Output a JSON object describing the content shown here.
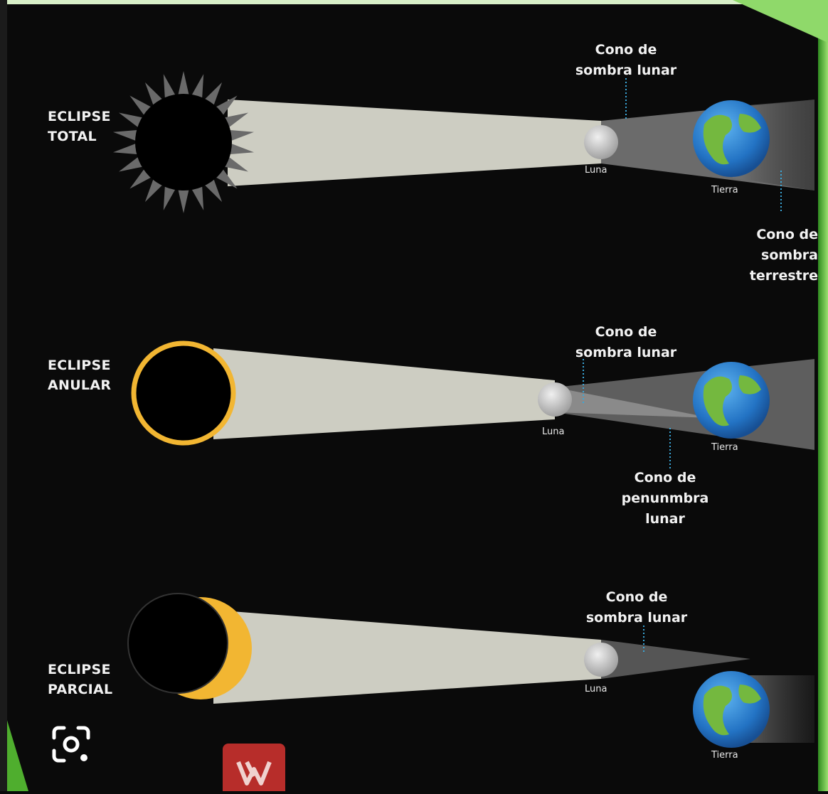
{
  "colors": {
    "background": "#0a0a0a",
    "frame_green": "#5fc93c",
    "ray": "#cfcfc4",
    "umbra": "#5a5a5a",
    "sun_corona": "#6a6a6a",
    "annulus": "#f2b632",
    "crescent": "#f2b632",
    "ocean": "#2e86d6",
    "land": "#6fb13c",
    "moon": "#d9d9d9",
    "badge": "#b72d2a"
  },
  "diagrams": [
    {
      "id": "total",
      "title": "ECLIPSE\nTOTAL",
      "sun_style": "corona",
      "moon_label": "Luna",
      "earth_label": "Tierra",
      "annotations": [
        {
          "id": "moon-umbra",
          "text": "Cono de\nsombra lunar"
        },
        {
          "id": "earth-umbra",
          "text": "Cono de\nsombra\nterrestre"
        }
      ]
    },
    {
      "id": "annular",
      "title": "ECLIPSE\nANULAR",
      "sun_style": "ring",
      "moon_label": "Luna",
      "earth_label": "Tierra",
      "annotations": [
        {
          "id": "moon-umbra",
          "text": "Cono de\nsombra lunar"
        },
        {
          "id": "moon-penumbra",
          "text": "Cono de\npenunmbra\nlunar"
        }
      ]
    },
    {
      "id": "partial",
      "title": "ECLIPSE\nPARCIAL",
      "sun_style": "crescent",
      "moon_label": "Luna",
      "earth_label": "Tierra",
      "annotations": [
        {
          "id": "moon-umbra",
          "text": "Cono de\nsombra lunar"
        }
      ]
    }
  ],
  "overlays": {
    "lens_icon": "google-lens-icon",
    "badge_icon": "wps-office-icon"
  }
}
